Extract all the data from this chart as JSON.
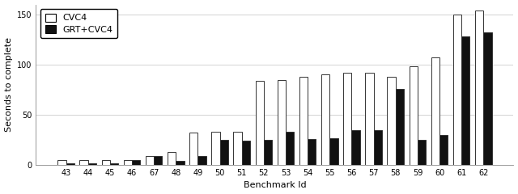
{
  "categories": [
    "43",
    "44",
    "45",
    "46",
    "67",
    "48",
    "49",
    "50",
    "51",
    "52",
    "53",
    "54",
    "55",
    "56",
    "57",
    "58",
    "59",
    "60",
    "61",
    "62"
  ],
  "cvc4": [
    5,
    5,
    5,
    5,
    9,
    13,
    32,
    33,
    33,
    84,
    85,
    88,
    90,
    92,
    92,
    88,
    98,
    107,
    150,
    154
  ],
  "grt_cvc4": [
    2,
    2,
    2,
    5,
    9,
    4,
    9,
    25,
    24,
    25,
    33,
    26,
    27,
    35,
    35,
    76,
    25,
    30,
    128,
    132
  ],
  "cvc4_color": "white",
  "grt_color": "#111111",
  "xlabel": "Benchmark Id",
  "ylabel": "Seconds to complete",
  "ylim": [
    0,
    160
  ],
  "yticks": [
    0,
    50,
    100,
    150
  ],
  "legend_labels": [
    "CVC4",
    "GRT+CVC4"
  ],
  "bar_width": 0.38,
  "grid_color": "#cccccc",
  "edge_color": "#333333",
  "font_size_ticks": 7,
  "font_size_label": 8,
  "font_size_legend": 8
}
